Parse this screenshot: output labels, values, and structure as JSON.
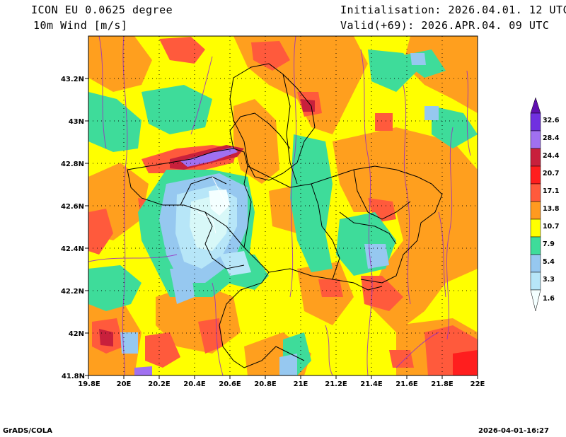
{
  "header": {
    "model": "ICON EU 0.0625 degree",
    "field": "10m Wind [m/s]",
    "init": "Initialisation: 2026.04.01. 12 UTC",
    "valid": "Valid(+69): 2026.APR.04. 09 UTC"
  },
  "footer": {
    "left": "GrADS/COLA",
    "right": "2026-04-01-16:27"
  },
  "map": {
    "lon_range": [
      19.8,
      22.0
    ],
    "lat_range": [
      41.8,
      43.4
    ],
    "x_ticks": [
      "19.8E",
      "20E",
      "20.2E",
      "20.4E",
      "20.6E",
      "20.8E",
      "21E",
      "21.2E",
      "21.4E",
      "21.6E",
      "21.8E",
      "22E"
    ],
    "y_ticks": [
      "41.8N",
      "42N",
      "42.2N",
      "42.4N",
      "42.6N",
      "42.8N",
      "43N",
      "43.2N"
    ],
    "grid": "dotted"
  },
  "colorbar": {
    "levels": [
      "1.6",
      "3.3",
      "5.4",
      "7.9",
      "10.7",
      "13.8",
      "17.1",
      "20.7",
      "24.4",
      "28.4",
      "32.6"
    ],
    "colors": [
      "#d8f8f8",
      "#b7e6f8",
      "#96c8f0",
      "#3edc9a",
      "#ffff00",
      "#ff9a20",
      "#ff5a3c",
      "#ff1e1e",
      "#c8203c",
      "#a070f0",
      "#7030e0",
      "#6010b0"
    ]
  },
  "wind_speed_colors": {
    "calm": "#f4ffff",
    "light": "#d8f8f8",
    "breeze": "#b7e6f8",
    "moderate": "#96c8f0",
    "fresh": "#3edc9a",
    "strong": "#ffff00",
    "near_gale": "#ff9a20",
    "gale": "#ff5a3c",
    "strong_gale": "#ff1e1e",
    "storm": "#c8203c",
    "violent_storm": "#a070f0"
  },
  "streamline_color": "#9a30c0"
}
